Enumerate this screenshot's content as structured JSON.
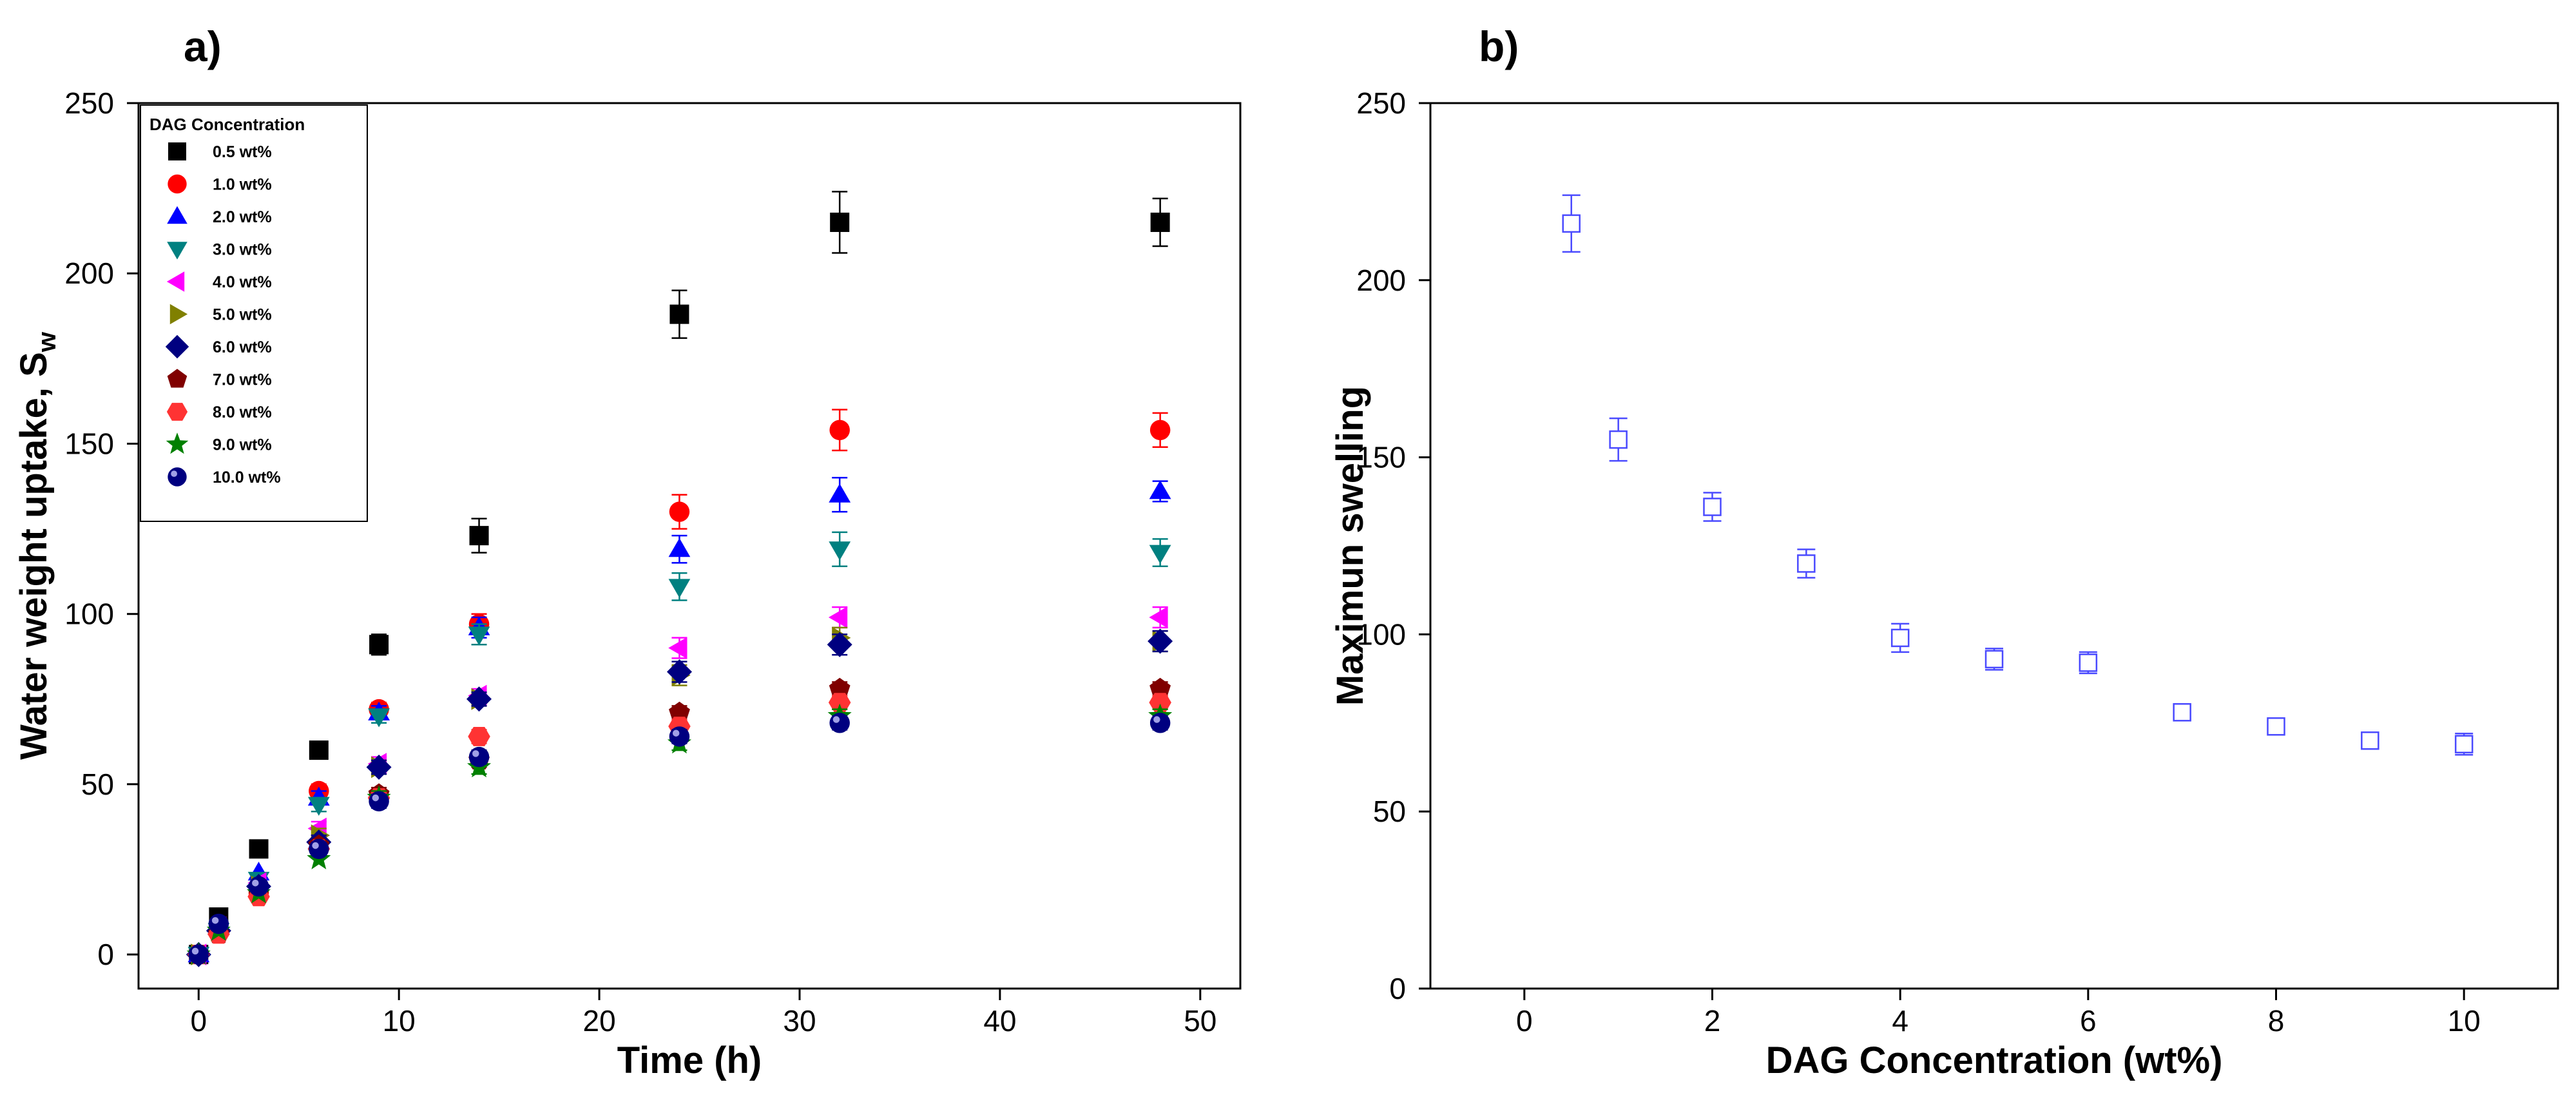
{
  "colors": {
    "0.5 wt%": "#000000",
    "1.0 wt%": "#ff0000",
    "2.0 wt%": "#0000ff",
    "3.0 wt%": "#008080",
    "4.0 wt%": "#ff00ff",
    "5.0 wt%": "#808000",
    "6.0 wt%": "#000080",
    "7.0 wt%": "#800000",
    "8.0 wt%": "#ff3333",
    "9.0 wt%": "#008000",
    "10.0 wt%": "#000080",
    "panel_b": "#4a4aff"
  },
  "chart_data": [
    {
      "panel": "a)",
      "type": "scatter",
      "title": "",
      "xlabel": "Time (h)",
      "ylabel_main": "Water weight uptake, S",
      "ylabel_sub": "w",
      "xlim": [
        -3,
        52
      ],
      "ylim": [
        -10,
        250
      ],
      "xticks": [
        0,
        10,
        20,
        30,
        40,
        50
      ],
      "yticks": [
        0,
        50,
        100,
        150,
        200,
        250
      ],
      "grid": false,
      "legend_title": "DAG Concentration",
      "legend_position": "top-left",
      "x": [
        0,
        1,
        3,
        6,
        9,
        14,
        24,
        32,
        48
      ],
      "series": [
        {
          "name": "0.5 wt%",
          "marker": "square",
          "values": [
            0,
            11,
            31,
            60,
            91,
            123,
            188,
            215,
            215
          ],
          "errors": [
            1,
            1,
            2,
            2,
            3,
            5,
            7,
            9,
            7
          ]
        },
        {
          "name": "1.0 wt%",
          "marker": "circle",
          "values": [
            0,
            7,
            18,
            48,
            72,
            97,
            130,
            154,
            154
          ],
          "errors": [
            1,
            1,
            1,
            2,
            2,
            3,
            5,
            6,
            5
          ]
        },
        {
          "name": "2.0 wt%",
          "marker": "triangle-up",
          "values": [
            0,
            8,
            24,
            46,
            71,
            96,
            119,
            135,
            136
          ],
          "errors": [
            1,
            1,
            1,
            2,
            2,
            3,
            4,
            5,
            3
          ]
        },
        {
          "name": "3.0 wt%",
          "marker": "triangle-down",
          "values": [
            0,
            7,
            22,
            44,
            70,
            94,
            108,
            119,
            118
          ],
          "errors": [
            1,
            1,
            1,
            2,
            2,
            3,
            4,
            5,
            4
          ]
        },
        {
          "name": "4.0 wt%",
          "marker": "triangle-left",
          "values": [
            0,
            8,
            21,
            37,
            56,
            76,
            90,
            99,
            99
          ],
          "errors": [
            1,
            1,
            1,
            2,
            2,
            2,
            3,
            3,
            3
          ]
        },
        {
          "name": "5.0 wt%",
          "marker": "triangle-right",
          "values": [
            0,
            7,
            20,
            35,
            55,
            75,
            82,
            93,
            92
          ],
          "errors": [
            1,
            1,
            1,
            2,
            2,
            2,
            3,
            3,
            3
          ]
        },
        {
          "name": "6.0 wt%",
          "marker": "diamond",
          "values": [
            0,
            7,
            20,
            33,
            55,
            75,
            83,
            91,
            92
          ],
          "errors": [
            1,
            1,
            1,
            2,
            2,
            2,
            3,
            3,
            3
          ]
        },
        {
          "name": "7.0 wt%",
          "marker": "pentagon",
          "values": [
            0,
            6,
            18,
            32,
            47,
            57,
            71,
            78,
            78
          ],
          "errors": [
            1,
            1,
            1,
            1,
            2,
            2,
            2,
            2,
            2
          ]
        },
        {
          "name": "8.0 wt%",
          "marker": "hexagon",
          "values": [
            0,
            6,
            17,
            31,
            46,
            64,
            67,
            74,
            74
          ],
          "errors": [
            1,
            1,
            1,
            1,
            2,
            2,
            2,
            2,
            2
          ]
        },
        {
          "name": "9.0 wt%",
          "marker": "star",
          "values": [
            0,
            7,
            18,
            28,
            46,
            55,
            62,
            70,
            70
          ],
          "errors": [
            1,
            1,
            1,
            1,
            2,
            2,
            2,
            2,
            2
          ]
        },
        {
          "name": "10.0 wt%",
          "marker": "sphere",
          "values": [
            0,
            9,
            20,
            31,
            45,
            58,
            64,
            68,
            68
          ],
          "errors": [
            1,
            1,
            1,
            1,
            2,
            2,
            2,
            2,
            2
          ]
        }
      ]
    },
    {
      "panel": "b)",
      "type": "scatter",
      "title": "",
      "xlabel": "DAG Concentration (wt%)",
      "ylabel": "Maximun swelling",
      "xlim": [
        -1,
        11
      ],
      "ylim": [
        0,
        250
      ],
      "xticks": [
        0,
        2,
        4,
        6,
        8,
        10
      ],
      "yticks": [
        0,
        50,
        100,
        150,
        200,
        250
      ],
      "grid": false,
      "marker": "open-square",
      "x": [
        0.5,
        1,
        2,
        3,
        4,
        5,
        6,
        7,
        8,
        9,
        10
      ],
      "values": [
        216,
        155,
        136,
        120,
        99,
        93,
        92,
        78,
        74,
        70,
        69
      ],
      "errors": [
        8,
        6,
        4,
        4,
        4,
        3,
        3,
        2,
        2,
        2,
        3
      ]
    }
  ]
}
